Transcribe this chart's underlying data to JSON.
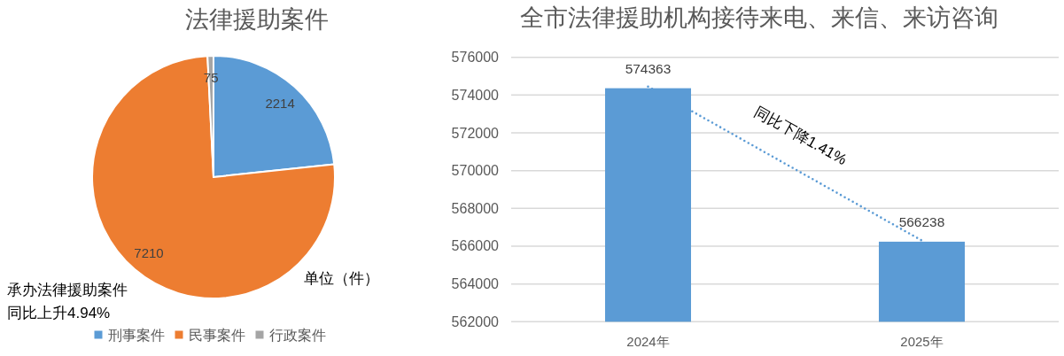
{
  "chart_data": [
    {
      "type": "pie",
      "title": "法律援助案件",
      "categories": [
        "刑事案件",
        "民事案件",
        "行政案件"
      ],
      "values": [
        2214,
        7210,
        75
      ],
      "colors": [
        "#5b9bd5",
        "#ed7d31",
        "#a5a5a5"
      ],
      "data_labels": true,
      "legend": "bottom",
      "annotations": [
        "单位（件）",
        "承办法律援助案件",
        "同比上升4.94%"
      ]
    },
    {
      "type": "bar",
      "title": "全市法律援助机构接待来电、来信、来访咨询",
      "categories": [
        "2024年",
        "2025年"
      ],
      "series": [
        {
          "type": "bar",
          "color": "#5b9bd5",
          "values": [
            574363,
            566238
          ],
          "value_labels": [
            "574363",
            "566238"
          ]
        },
        {
          "type": "line",
          "color": "#5b9bd5",
          "values": [
            574450,
            566300
          ],
          "line_style": "dotted"
        }
      ],
      "ylim": [
        562000,
        576000
      ],
      "yticks": [
        562000,
        564000,
        566000,
        568000,
        570000,
        572000,
        574000,
        576000
      ],
      "grid": "y",
      "annotations": [
        "同比下降1.41%"
      ]
    }
  ]
}
